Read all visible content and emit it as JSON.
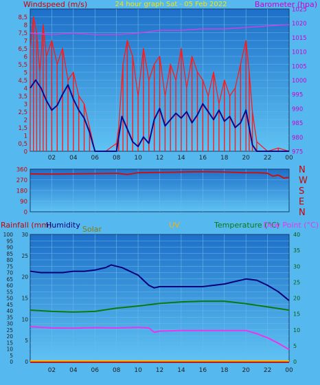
{
  "colors": {
    "page_bg": "#55b8ee",
    "plot_grad_top": "#1d6fc8",
    "plot_grad_bottom": "#5fc3f3",
    "grid": "#6fb8ea",
    "wind_gust": "#ff1a1a",
    "wind_avg": "#0a0a8c",
    "barometer": "#d040e0",
    "title": "#f5e600",
    "axis_left": "#cc0000",
    "axis_right": "#cc00cc",
    "direction": "#cc1111",
    "dir_labels": "#cc0000",
    "rain_label": "#cc0000",
    "humidity": "#00007a",
    "solar": "#8a7a00",
    "uv": "#ffb000",
    "temperature": "#0b7a0b",
    "dew_point": "#ee33ee",
    "axis_dark": "#222222",
    "temp_axis": "#0a5a0a"
  },
  "chart_data": [
    {
      "type": "line",
      "title": "24 hour graph Sat - 05 Feb 2022",
      "ylabel_left": "Windspeed (m/s)",
      "ylabel_right": "Barometer (hpa)",
      "ylim_left": [
        0,
        9.0
      ],
      "ylim_right": [
        975,
        1025
      ],
      "y_ticks_left": [
        "0",
        "0,5",
        "1",
        "1,5",
        "2",
        "2,5",
        "3",
        "3,5",
        "4",
        "4,5",
        "5",
        "5,5",
        "6",
        "6,5",
        "7",
        "7,5",
        "8",
        "8,5"
      ],
      "y_ticks_right": [
        "975",
        "980",
        "985",
        "990",
        "995",
        "1000",
        "1005",
        "1010",
        "1015",
        "1020",
        "1025"
      ],
      "x_ticks": [
        "02",
        "04",
        "06",
        "08",
        "10",
        "12",
        "14",
        "16",
        "18",
        "20",
        "22",
        "00"
      ],
      "series": [
        {
          "key": "gust",
          "x": [
            0,
            0.3,
            0.6,
            0.9,
            1.2,
            1.5,
            2,
            2.5,
            3,
            3.5,
            4,
            4.5,
            5,
            5.5,
            6,
            7,
            8,
            8.2,
            8.6,
            9,
            9.5,
            10,
            10.5,
            11,
            11.5,
            12,
            12.5,
            13,
            13.5,
            14,
            14.5,
            15,
            15.5,
            16,
            16.5,
            17,
            17.5,
            18,
            18.5,
            19,
            19.5,
            20,
            20.3,
            20.6,
            21,
            22,
            23,
            24
          ],
          "values": [
            6.5,
            8.5,
            7.5,
            5.0,
            8.0,
            6.0,
            7.0,
            5.5,
            6.5,
            4.5,
            5.0,
            3.5,
            3.0,
            1.5,
            0,
            0,
            0.5,
            1.5,
            5.5,
            7.0,
            6.0,
            3.5,
            6.5,
            4.5,
            5.5,
            6.0,
            3.5,
            5.5,
            4.5,
            6.5,
            4.0,
            6.0,
            5.0,
            4.5,
            3.5,
            5.0,
            3.0,
            4.5,
            3.5,
            4.0,
            5.5,
            7.0,
            5.0,
            2.5,
            0.6,
            0,
            0.2,
            0
          ]
        },
        {
          "key": "avg",
          "x": [
            0,
            0.5,
            1,
            1.5,
            2,
            2.5,
            3,
            3.5,
            4,
            4.5,
            5,
            5.5,
            6,
            7,
            8,
            8.5,
            9,
            9.5,
            10,
            10.5,
            11,
            11.5,
            12,
            12.5,
            13,
            13.5,
            14,
            14.5,
            15,
            15.5,
            16,
            16.5,
            17,
            17.5,
            18,
            18.5,
            19,
            19.5,
            20,
            20.3,
            20.6,
            21,
            22,
            23,
            24
          ],
          "values": [
            4.0,
            4.5,
            4.0,
            3.2,
            2.6,
            2.9,
            3.6,
            4.2,
            3.3,
            2.6,
            2.1,
            1.2,
            0,
            0,
            0,
            2.2,
            1.4,
            0.6,
            0.3,
            0.9,
            0.5,
            2.0,
            2.7,
            1.6,
            2.0,
            2.4,
            2.1,
            2.5,
            1.8,
            2.3,
            3.0,
            2.5,
            2.0,
            2.6,
            1.9,
            2.2,
            1.5,
            1.8,
            2.6,
            1.5,
            0.4,
            0,
            0,
            0,
            0
          ]
        },
        {
          "key": "baro",
          "axis": "right",
          "x": [
            0,
            2,
            4,
            6,
            8,
            10,
            12,
            14,
            16,
            18,
            20,
            22,
            24
          ],
          "values": [
            1016.5,
            1016.0,
            1016.5,
            1016.0,
            1016.0,
            1016.5,
            1017.5,
            1017.5,
            1018.0,
            1018.0,
            1018.5,
            1019.0,
            1019.5
          ]
        }
      ]
    },
    {
      "type": "line",
      "ylim": [
        0,
        360
      ],
      "y_ticks": [
        "0",
        "90",
        "180",
        "270",
        "360"
      ],
      "direction_labels": [
        "N",
        "W",
        "S",
        "E",
        "N"
      ],
      "series": [
        {
          "key": "direction",
          "x": [
            0,
            2,
            4,
            6,
            8,
            9,
            10,
            12,
            14,
            16,
            18,
            20,
            21,
            22,
            22.5,
            23,
            23.5,
            24
          ],
          "values": [
            320,
            318,
            320,
            322,
            325,
            315,
            330,
            332,
            335,
            338,
            335,
            330,
            330,
            325,
            300,
            310,
            285,
            290
          ]
        }
      ]
    },
    {
      "type": "line",
      "ylabel_rainfall": "Rainfall (mm)",
      "ylabel_humidity": "Humidity",
      "ylabel_solar": "Solar",
      "ylabel_uv": "UV",
      "ylabel_temperature": "Temperature (°C)",
      "ylabel_dewpoint": "Dew Point (°C)",
      "ylim_left_outer": [
        0,
        100
      ],
      "ylim_left_inner": [
        0,
        30
      ],
      "ylim_right": [
        0,
        40
      ],
      "y_ticks_left_outer": [
        "0",
        "5",
        "10",
        "15",
        "20",
        "25",
        "30",
        "35",
        "40",
        "45",
        "50",
        "55",
        "60",
        "65",
        "70",
        "75",
        "80",
        "85",
        "90",
        "95",
        "100"
      ],
      "y_ticks_left_inner": [
        "0",
        "5",
        "10",
        "15",
        "20",
        "25",
        "30"
      ],
      "y_ticks_right": [
        "0",
        "5",
        "10",
        "15",
        "20",
        "25",
        "30",
        "35",
        "40"
      ],
      "x_ticks": [
        "02",
        "04",
        "06",
        "08",
        "10",
        "12",
        "14",
        "16",
        "18",
        "20",
        "22",
        "00"
      ],
      "series": [
        {
          "key": "humidity",
          "x": [
            0,
            1,
            2,
            3,
            4,
            5,
            6,
            7,
            7.5,
            8,
            8.5,
            9,
            9.5,
            10,
            10.5,
            11,
            11.5,
            12,
            13,
            14,
            15,
            16,
            17,
            18,
            19,
            20,
            21,
            22,
            23,
            24
          ],
          "values": [
            71,
            70,
            70,
            70,
            71,
            71,
            72,
            74,
            76,
            75,
            74,
            72,
            70,
            68,
            64,
            60,
            58,
            59,
            59,
            59,
            59,
            59,
            60,
            61,
            63,
            65,
            64,
            60,
            55,
            48
          ]
        },
        {
          "key": "temperature",
          "x": [
            0,
            2,
            4,
            6,
            8,
            10,
            12,
            14,
            16,
            18,
            20,
            22,
            24
          ],
          "values": [
            16.2,
            15.8,
            15.6,
            15.8,
            16.8,
            17.5,
            18.3,
            18.8,
            19.0,
            19.0,
            18.2,
            17.2,
            16.2
          ]
        },
        {
          "key": "dewpoint",
          "x": [
            0,
            2,
            4,
            6,
            8,
            10,
            11,
            11.5,
            12,
            14,
            16,
            18,
            20,
            21,
            22,
            23,
            24
          ],
          "values": [
            11.0,
            10.6,
            10.5,
            10.7,
            10.6,
            10.8,
            10.6,
            9.2,
            9.6,
            9.8,
            9.8,
            9.8,
            9.8,
            8.8,
            7.5,
            5.8,
            3.8
          ]
        },
        {
          "key": "rainfall",
          "x": [
            0,
            24
          ],
          "values": [
            0,
            0
          ]
        },
        {
          "key": "solar",
          "x": [
            0,
            24
          ],
          "values": [
            0,
            0
          ]
        }
      ]
    }
  ]
}
